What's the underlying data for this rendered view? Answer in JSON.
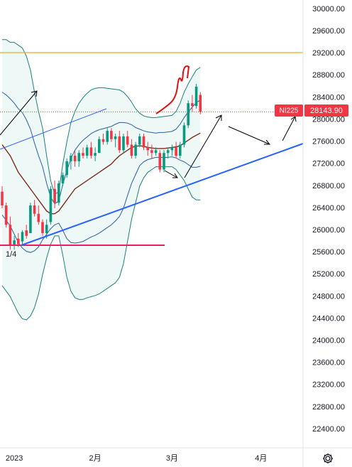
{
  "chart_data": {
    "type": "candlestick",
    "symbol": "NI225",
    "last_price_label": "28143.90",
    "annotation": "1/4",
    "categories": [
      null,
      null,
      null,
      "2023",
      null,
      null,
      null,
      null,
      null,
      null,
      null,
      null,
      null,
      null,
      null,
      null,
      null,
      null,
      null,
      null,
      null,
      null,
      null,
      "2月",
      null,
      null,
      null,
      null,
      null,
      null,
      null,
      null,
      null,
      null,
      null,
      null,
      null,
      null,
      null,
      null,
      null,
      null,
      "3月",
      null,
      null,
      null,
      null,
      null,
      null,
      null,
      null,
      null,
      null,
      null,
      null,
      null,
      null,
      null,
      null,
      null,
      null,
      null,
      null,
      null,
      "4月",
      null,
      null,
      null,
      null,
      null,
      null,
      null,
      null,
      null,
      null
    ],
    "open": [
      26700,
      26450,
      26100,
      25720,
      25850,
      25800,
      26000,
      25950,
      26450,
      26300,
      26150,
      25950,
      26150,
      26750,
      26500,
      26850,
      27000,
      27250,
      27350,
      27250,
      27400,
      27350,
      27500,
      27350,
      27400,
      27650,
      27600,
      27800,
      27650,
      27700,
      27450,
      27700,
      27550,
      27350,
      27550,
      27700,
      27500,
      27450,
      27400,
      27400,
      27100,
      27400,
      27450,
      27500,
      27350,
      27550,
      27900,
      28300,
      28250,
      28450,
      null,
      null,
      null,
      null,
      null,
      null,
      null,
      null,
      null,
      null,
      null,
      null,
      null,
      null,
      null,
      null,
      null,
      null,
      null,
      null,
      null,
      null,
      null,
      null,
      null
    ],
    "high": [
      26800,
      26500,
      26250,
      25900,
      25950,
      26000,
      26100,
      26500,
      26550,
      26450,
      26200,
      26200,
      26800,
      26900,
      26900,
      27050,
      27300,
      27400,
      27450,
      27450,
      27500,
      27550,
      27600,
      27500,
      27700,
      27750,
      27850,
      27850,
      27750,
      27800,
      27750,
      27800,
      27650,
      27600,
      27750,
      27750,
      27600,
      27550,
      27500,
      27450,
      27450,
      27500,
      27550,
      27600,
      27600,
      27950,
      28350,
      28450,
      28650,
      28500,
      null,
      null,
      null,
      null,
      null,
      null,
      null,
      null,
      null,
      null,
      null,
      null,
      null,
      null,
      null,
      null,
      null,
      null,
      null,
      null,
      null,
      null,
      null,
      null,
      null
    ],
    "low": [
      26400,
      26050,
      25650,
      25650,
      25700,
      25750,
      25850,
      25950,
      26250,
      26100,
      25900,
      25850,
      26100,
      26400,
      26450,
      26800,
      26950,
      27100,
      27150,
      27150,
      27300,
      27300,
      27300,
      27250,
      27400,
      27550,
      27550,
      27600,
      27500,
      27400,
      27400,
      27500,
      27300,
      27300,
      27500,
      27450,
      27350,
      27300,
      27350,
      27050,
      27050,
      27300,
      27350,
      27300,
      27300,
      27500,
      27850,
      28150,
      28200,
      28100,
      null,
      null,
      null,
      null,
      null,
      null,
      null,
      null,
      null,
      null,
      null,
      null,
      null,
      null,
      null,
      null,
      null,
      null,
      null,
      null,
      null,
      null,
      null,
      null,
      null
    ],
    "close": [
      26450,
      26100,
      25720,
      25820,
      25750,
      25970,
      25900,
      26450,
      26300,
      26150,
      25950,
      26100,
      26750,
      26500,
      26850,
      27000,
      27250,
      27350,
      27250,
      27400,
      27350,
      27500,
      27350,
      27400,
      27650,
      27600,
      27800,
      27650,
      27700,
      27450,
      27700,
      27550,
      27350,
      27550,
      27700,
      27500,
      27450,
      27400,
      27450,
      27100,
      27400,
      27450,
      27500,
      27350,
      27550,
      27900,
      28300,
      28250,
      28600,
      28143.9,
      null,
      null,
      null,
      null,
      null,
      null,
      null,
      null,
      null,
      null,
      null,
      null,
      null,
      null,
      null,
      null,
      null,
      null,
      null,
      null,
      null,
      null,
      null,
      null,
      null
    ],
    "up_color": "#089981",
    "down_color": "#f23645",
    "bands": [
      {
        "color": "#1b7f79",
        "values": [
          29450,
          29450,
          29400,
          29400,
          29350,
          29300,
          29150,
          28900,
          28500,
          28150,
          27850,
          27350,
          26900,
          26650,
          26700,
          27200,
          27600,
          27950,
          28150,
          28300,
          28400,
          28480,
          28540,
          28570,
          28580,
          28580,
          28570,
          28560,
          28550,
          28540,
          28500,
          28420,
          28320,
          28200,
          28120,
          28070,
          28050,
          28040,
          28040,
          28050,
          28060,
          28070,
          28080,
          28150,
          28300,
          28500,
          28650,
          28780,
          28900,
          28950,
          null,
          null,
          null,
          null,
          null,
          null,
          null,
          null,
          null,
          null,
          null,
          null,
          null,
          null,
          null,
          null,
          null,
          null,
          null,
          null,
          null,
          null,
          null,
          null,
          null
        ]
      },
      {
        "color": "#1b7f79",
        "values": [
          25000,
          24900,
          24800,
          24650,
          24500,
          24400,
          24380,
          24450,
          24600,
          24850,
          25200,
          25500,
          25750,
          25900,
          25900,
          25550,
          25150,
          24900,
          24780,
          24750,
          24750,
          24780,
          24800,
          24820,
          24850,
          24900,
          24950,
          25000,
          25050,
          25150,
          25400,
          25800,
          26200,
          26500,
          26800,
          26950,
          27050,
          27100,
          27150,
          27150,
          27150,
          27150,
          27150,
          27100,
          27000,
          26900,
          26750,
          26600,
          26550,
          26550,
          null,
          null,
          null,
          null,
          null,
          null,
          null,
          null,
          null,
          null,
          null,
          null,
          null,
          null,
          null,
          null,
          null,
          null,
          null,
          null,
          null,
          null,
          null,
          null,
          null
        ]
      },
      {
        "color": "#2a5f9e",
        "values": [
          28500,
          28450,
          28380,
          28300,
          28200,
          28130,
          28000,
          27830,
          27580,
          27350,
          27150,
          26850,
          26600,
          26480,
          26530,
          26830,
          27080,
          27300,
          27450,
          27550,
          27630,
          27690,
          27750,
          27790,
          27820,
          27840,
          27860,
          27880,
          27920,
          27950,
          27950,
          27940,
          27910,
          27860,
          27830,
          27800,
          27780,
          27770,
          27760,
          27770,
          27770,
          27780,
          27790,
          27830,
          27920,
          28040,
          28140,
          28230,
          28310,
          28360,
          null,
          null,
          null,
          null,
          null,
          null,
          null,
          null,
          null,
          null,
          null,
          null,
          null,
          null,
          null,
          null,
          null,
          null,
          null,
          null,
          null,
          null,
          null,
          null,
          null
        ]
      },
      {
        "color": "#2a5f9e",
        "values": [
          26280,
          26180,
          26080,
          25930,
          25780,
          25680,
          25620,
          25600,
          25630,
          25700,
          25830,
          25930,
          26030,
          26100,
          26130,
          26000,
          25850,
          25780,
          25770,
          25780,
          25800,
          25840,
          25880,
          25910,
          25950,
          26000,
          26050,
          26100,
          26170,
          26250,
          26400,
          26630,
          26850,
          27010,
          27170,
          27240,
          27280,
          27300,
          27320,
          27320,
          27320,
          27320,
          27330,
          27310,
          27270,
          27240,
          27190,
          27140,
          27140,
          27160,
          null,
          null,
          null,
          null,
          null,
          null,
          null,
          null,
          null,
          null,
          null,
          null,
          null,
          null,
          null,
          null,
          null,
          null,
          null,
          null,
          null,
          null,
          null,
          null,
          null
        ]
      },
      {
        "color": "#7b2d1a",
        "values": [
          27550,
          27450,
          27350,
          27200,
          27050,
          26950,
          26850,
          26750,
          26650,
          26550,
          26450,
          26350,
          26300,
          26300,
          26350,
          26450,
          26550,
          26650,
          26750,
          26800,
          26850,
          26900,
          26950,
          27000,
          27050,
          27100,
          27150,
          27200,
          27280,
          27350,
          27400,
          27450,
          27500,
          27520,
          27530,
          27520,
          27500,
          27490,
          27480,
          27480,
          27480,
          27490,
          27500,
          27510,
          27530,
          27580,
          27630,
          27680,
          27720,
          27760,
          null,
          null,
          null,
          null,
          null,
          null,
          null,
          null,
          null,
          null,
          null,
          null,
          null,
          null,
          null,
          null,
          null,
          null,
          null,
          null,
          null,
          null,
          null,
          null,
          null
        ]
      }
    ],
    "ylim": [
      22066,
      30167
    ],
    "yticks": [
      {
        "value": 30000,
        "label": "30000.00"
      },
      {
        "value": 29600,
        "label": "29600.00"
      },
      {
        "value": 29200,
        "label": "29200.00"
      },
      {
        "value": 28800,
        "label": "28800.00"
      },
      {
        "value": 28400,
        "label": "28400.00"
      },
      {
        "value": 28000,
        "label": "28000.00"
      },
      {
        "value": 27600,
        "label": "27600.00"
      },
      {
        "value": 27200,
        "label": "27200.00"
      },
      {
        "value": 26800,
        "label": "26800.00"
      },
      {
        "value": 26400,
        "label": "26400.00"
      },
      {
        "value": 26000,
        "label": "26000.00"
      },
      {
        "value": 25600,
        "label": "25600.00"
      },
      {
        "value": 25200,
        "label": "25200.00"
      },
      {
        "value": 24800,
        "label": "24800.00"
      },
      {
        "value": 24400,
        "label": "24400.00"
      },
      {
        "value": 24000,
        "label": "24000.00"
      },
      {
        "value": 23600,
        "label": "23600.00"
      },
      {
        "value": 23200,
        "label": "23200.00"
      },
      {
        "value": 22800,
        "label": "22800.00"
      },
      {
        "value": 22400,
        "label": "22400.00"
      }
    ],
    "grid": false
  }
}
